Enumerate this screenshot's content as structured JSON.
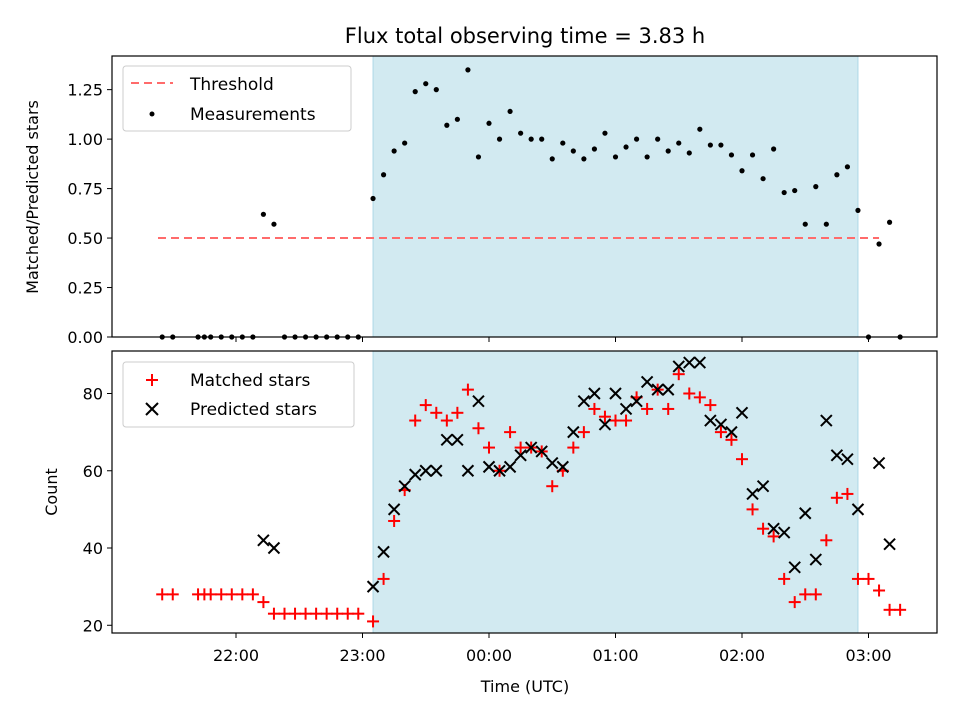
{
  "title": "Flux total observing time = 3.83 h",
  "colors": {
    "threshold": "#ff6b6b",
    "measurement": "#000000",
    "matched": "#ff0000",
    "predicted": "#000000",
    "observing_band": "#add8e6"
  },
  "chart_data": [
    {
      "type": "scatter",
      "ylabel": "Matched/Predicted stars",
      "ylim": [
        0,
        1.42
      ],
      "yticks": [
        "0.00",
        "0.25",
        "0.50",
        "0.75",
        "1.00",
        "1.25"
      ],
      "grid": false,
      "legend_position": "top-left",
      "legend": [
        "Threshold",
        "Measurements"
      ],
      "threshold": {
        "name": "Threshold",
        "value": 0.5,
        "x_range": [
          "21:23",
          "03:05"
        ]
      },
      "shaded_interval": [
        "23:05",
        "02:55"
      ],
      "series": [
        {
          "name": "Measurements",
          "points": [
            [
              "21:25",
              0.0
            ],
            [
              "21:30",
              0.0
            ],
            [
              "21:42",
              0.0
            ],
            [
              "21:45",
              0.0
            ],
            [
              "21:48",
              0.0
            ],
            [
              "21:53",
              0.0
            ],
            [
              "21:58",
              0.0
            ],
            [
              "22:03",
              0.0
            ],
            [
              "22:08",
              0.0
            ],
            [
              "22:13",
              0.62
            ],
            [
              "22:18",
              0.57
            ],
            [
              "22:23",
              0.0
            ],
            [
              "22:28",
              0.0
            ],
            [
              "22:33",
              0.0
            ],
            [
              "22:38",
              0.0
            ],
            [
              "22:43",
              0.0
            ],
            [
              "22:48",
              0.0
            ],
            [
              "22:53",
              0.0
            ],
            [
              "22:58",
              0.0
            ],
            [
              "23:05",
              0.7
            ],
            [
              "23:10",
              0.82
            ],
            [
              "23:15",
              0.94
            ],
            [
              "23:20",
              0.98
            ],
            [
              "23:25",
              1.24
            ],
            [
              "23:30",
              1.28
            ],
            [
              "23:35",
              1.25
            ],
            [
              "23:40",
              1.07
            ],
            [
              "23:45",
              1.1
            ],
            [
              "23:50",
              1.35
            ],
            [
              "23:55",
              0.91
            ],
            [
              "00:00",
              1.08
            ],
            [
              "00:05",
              1.0
            ],
            [
              "00:10",
              1.14
            ],
            [
              "00:15",
              1.03
            ],
            [
              "00:20",
              1.0
            ],
            [
              "00:25",
              1.0
            ],
            [
              "00:30",
              0.9
            ],
            [
              "00:35",
              0.98
            ],
            [
              "00:40",
              0.94
            ],
            [
              "00:45",
              0.9
            ],
            [
              "00:50",
              0.95
            ],
            [
              "00:55",
              1.03
            ],
            [
              "01:00",
              0.91
            ],
            [
              "01:05",
              0.96
            ],
            [
              "01:10",
              1.0
            ],
            [
              "01:15",
              0.91
            ],
            [
              "01:20",
              1.0
            ],
            [
              "01:25",
              0.94
            ],
            [
              "01:30",
              0.98
            ],
            [
              "01:35",
              0.93
            ],
            [
              "01:40",
              1.05
            ],
            [
              "01:45",
              0.97
            ],
            [
              "01:50",
              0.97
            ],
            [
              "01:55",
              0.92
            ],
            [
              "02:00",
              0.84
            ],
            [
              "02:05",
              0.92
            ],
            [
              "02:10",
              0.8
            ],
            [
              "02:15",
              0.95
            ],
            [
              "02:20",
              0.73
            ],
            [
              "02:25",
              0.74
            ],
            [
              "02:30",
              0.57
            ],
            [
              "02:35",
              0.76
            ],
            [
              "02:40",
              0.57
            ],
            [
              "02:45",
              0.82
            ],
            [
              "02:50",
              0.86
            ],
            [
              "02:55",
              0.64
            ],
            [
              "03:00",
              0.0
            ],
            [
              "03:05",
              0.47
            ],
            [
              "03:10",
              0.58
            ],
            [
              "03:15",
              0.0
            ]
          ]
        }
      ]
    },
    {
      "type": "scatter",
      "xlabel": "Time (UTC)",
      "ylabel": "Count",
      "ylim": [
        18,
        91
      ],
      "yticks": [
        "20",
        "40",
        "60",
        "80"
      ],
      "xlim": [
        "21:10",
        "03:42"
      ],
      "xticks": [
        "22:00",
        "23:00",
        "00:00",
        "01:00",
        "02:00",
        "03:00"
      ],
      "grid": false,
      "legend_position": "top-left",
      "legend": [
        "Matched stars",
        "Predicted stars"
      ],
      "shaded_interval": [
        "23:05",
        "02:55"
      ],
      "series": [
        {
          "name": "Matched stars",
          "marker": "plus",
          "points": [
            [
              "21:25",
              28
            ],
            [
              "21:30",
              28
            ],
            [
              "21:42",
              28
            ],
            [
              "21:45",
              28
            ],
            [
              "21:48",
              28
            ],
            [
              "21:53",
              28
            ],
            [
              "21:58",
              28
            ],
            [
              "22:03",
              28
            ],
            [
              "22:08",
              28
            ],
            [
              "22:13",
              26
            ],
            [
              "22:18",
              23
            ],
            [
              "22:23",
              23
            ],
            [
              "22:28",
              23
            ],
            [
              "22:33",
              23
            ],
            [
              "22:38",
              23
            ],
            [
              "22:43",
              23
            ],
            [
              "22:48",
              23
            ],
            [
              "22:53",
              23
            ],
            [
              "22:58",
              23
            ],
            [
              "23:05",
              21
            ],
            [
              "23:10",
              32
            ],
            [
              "23:15",
              47
            ],
            [
              "23:20",
              55
            ],
            [
              "23:25",
              73
            ],
            [
              "23:30",
              77
            ],
            [
              "23:35",
              75
            ],
            [
              "23:40",
              73
            ],
            [
              "23:45",
              75
            ],
            [
              "23:50",
              81
            ],
            [
              "23:55",
              71
            ],
            [
              "00:00",
              66
            ],
            [
              "00:05",
              60
            ],
            [
              "00:10",
              70
            ],
            [
              "00:15",
              66
            ],
            [
              "00:20",
              66
            ],
            [
              "00:25",
              65
            ],
            [
              "00:30",
              56
            ],
            [
              "00:35",
              60
            ],
            [
              "00:40",
              66
            ],
            [
              "00:45",
              70
            ],
            [
              "00:50",
              76
            ],
            [
              "00:55",
              74
            ],
            [
              "01:00",
              73
            ],
            [
              "01:05",
              73
            ],
            [
              "01:10",
              79
            ],
            [
              "01:15",
              76
            ],
            [
              "01:20",
              81
            ],
            [
              "01:25",
              76
            ],
            [
              "01:30",
              85
            ],
            [
              "01:35",
              80
            ],
            [
              "01:40",
              79
            ],
            [
              "01:45",
              77
            ],
            [
              "01:50",
              70
            ],
            [
              "01:55",
              68
            ],
            [
              "02:00",
              63
            ],
            [
              "02:05",
              50
            ],
            [
              "02:10",
              45
            ],
            [
              "02:15",
              43
            ],
            [
              "02:20",
              32
            ],
            [
              "02:25",
              26
            ],
            [
              "02:30",
              28
            ],
            [
              "02:35",
              28
            ],
            [
              "02:40",
              42
            ],
            [
              "02:45",
              53
            ],
            [
              "02:50",
              54
            ],
            [
              "02:55",
              32
            ],
            [
              "03:00",
              32
            ],
            [
              "03:05",
              29
            ],
            [
              "03:10",
              24
            ],
            [
              "03:15",
              24
            ]
          ]
        },
        {
          "name": "Predicted stars",
          "marker": "x",
          "points": [
            [
              "22:13",
              42
            ],
            [
              "22:18",
              40
            ],
            [
              "23:05",
              30
            ],
            [
              "23:10",
              39
            ],
            [
              "23:15",
              50
            ],
            [
              "23:20",
              56
            ],
            [
              "23:25",
              59
            ],
            [
              "23:30",
              60
            ],
            [
              "23:35",
              60
            ],
            [
              "23:40",
              68
            ],
            [
              "23:45",
              68
            ],
            [
              "23:50",
              60
            ],
            [
              "23:55",
              78
            ],
            [
              "00:00",
              61
            ],
            [
              "00:05",
              60
            ],
            [
              "00:10",
              61
            ],
            [
              "00:15",
              64
            ],
            [
              "00:20",
              66
            ],
            [
              "00:25",
              65
            ],
            [
              "00:30",
              62
            ],
            [
              "00:35",
              61
            ],
            [
              "00:40",
              70
            ],
            [
              "00:45",
              78
            ],
            [
              "00:50",
              80
            ],
            [
              "00:55",
              72
            ],
            [
              "01:00",
              80
            ],
            [
              "01:05",
              76
            ],
            [
              "01:10",
              78
            ],
            [
              "01:15",
              83
            ],
            [
              "01:20",
              81
            ],
            [
              "01:25",
              81
            ],
            [
              "01:30",
              87
            ],
            [
              "01:35",
              88
            ],
            [
              "01:40",
              88
            ],
            [
              "01:45",
              73
            ],
            [
              "01:50",
              72
            ],
            [
              "01:55",
              70
            ],
            [
              "02:00",
              75
            ],
            [
              "02:05",
              54
            ],
            [
              "02:10",
              56
            ],
            [
              "02:15",
              45
            ],
            [
              "02:20",
              44
            ],
            [
              "02:25",
              35
            ],
            [
              "02:30",
              49
            ],
            [
              "02:35",
              37
            ],
            [
              "02:40",
              73
            ],
            [
              "02:45",
              64
            ],
            [
              "02:50",
              63
            ],
            [
              "02:55",
              50
            ],
            [
              "03:05",
              62
            ],
            [
              "03:10",
              41
            ]
          ]
        }
      ]
    }
  ]
}
